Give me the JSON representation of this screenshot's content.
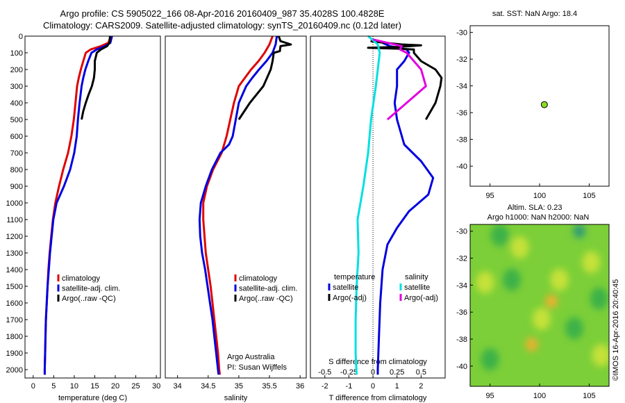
{
  "header": {
    "line1": "Argo profile: CS 5905022_166 08-Apr-2016 20160409_987 35.4028S 100.4828E",
    "line2": "Climatology: CARS2009. Satellite-adjusted climatology: synTS_20160409.nc (0.12d later)"
  },
  "side_label": "©IMOS 16-Apr-2016 20:40:45",
  "colors": {
    "climatology": "#e00000",
    "satellite": "#0000e0",
    "argo": "#000000",
    "sat_salinity": "#00e0e0",
    "argo_salinity_adj": "#e000e0",
    "marker": "#88dd22"
  },
  "chart_data": [
    {
      "type": "line",
      "id": "temperature",
      "xlabel": "temperature (deg C)",
      "ylabel": "",
      "xlim": [
        -2,
        31
      ],
      "ylim": [
        2050,
        0
      ],
      "xticks": [
        0,
        5,
        10,
        15,
        20,
        25,
        30
      ],
      "yticks": [
        0,
        100,
        200,
        300,
        400,
        500,
        600,
        700,
        800,
        900,
        1000,
        1100,
        1200,
        1300,
        1400,
        1500,
        1600,
        1700,
        1800,
        1900,
        2000
      ],
      "legend": [
        "climatology",
        "satellite-adj. clim.",
        "Argo(..raw -QC)"
      ],
      "series": [
        {
          "name": "climatology",
          "color": "#e00000",
          "points": [
            [
              18.9,
              0
            ],
            [
              18.6,
              20
            ],
            [
              18.3,
              40
            ],
            [
              16.5,
              60
            ],
            [
              14.0,
              80
            ],
            [
              12.8,
              100
            ],
            [
              12.2,
              150
            ],
            [
              11.6,
              200
            ],
            [
              11.1,
              250
            ],
            [
              10.7,
              300
            ],
            [
              10.3,
              400
            ],
            [
              9.9,
              500
            ],
            [
              9.3,
              600
            ],
            [
              8.5,
              700
            ],
            [
              7.3,
              800
            ],
            [
              6.3,
              900
            ],
            [
              5.4,
              1000
            ],
            [
              4.8,
              1100
            ],
            [
              4.4,
              1200
            ],
            [
              4.0,
              1300
            ],
            [
              3.7,
              1400
            ],
            [
              3.5,
              1500
            ],
            [
              3.3,
              1600
            ],
            [
              3.1,
              1700
            ],
            [
              3.0,
              1800
            ],
            [
              2.9,
              1900
            ],
            [
              2.8,
              2000
            ],
            [
              2.8,
              2030
            ]
          ]
        },
        {
          "name": "satellite-adj. clim.",
          "color": "#0000e0",
          "points": [
            [
              19.2,
              0
            ],
            [
              19.0,
              20
            ],
            [
              18.8,
              40
            ],
            [
              17.5,
              60
            ],
            [
              15.5,
              80
            ],
            [
              14.2,
              100
            ],
            [
              13.4,
              150
            ],
            [
              12.7,
              200
            ],
            [
              12.2,
              250
            ],
            [
              11.8,
              300
            ],
            [
              11.3,
              400
            ],
            [
              10.9,
              500
            ],
            [
              10.6,
              600
            ],
            [
              10.0,
              700
            ],
            [
              9.0,
              800
            ],
            [
              7.5,
              900
            ],
            [
              5.7,
              1000
            ],
            [
              4.9,
              1100
            ],
            [
              4.5,
              1200
            ],
            [
              4.1,
              1300
            ],
            [
              3.8,
              1400
            ],
            [
              3.5,
              1500
            ],
            [
              3.3,
              1600
            ],
            [
              3.1,
              1700
            ],
            [
              3.0,
              1800
            ],
            [
              2.9,
              1900
            ],
            [
              2.8,
              2000
            ],
            [
              2.8,
              2030
            ]
          ]
        },
        {
          "name": "Argo(..raw -QC)",
          "color": "#000000",
          "points": [
            [
              18.7,
              0
            ],
            [
              18.7,
              20
            ],
            [
              18.6,
              40
            ],
            [
              18.0,
              60
            ],
            [
              16.5,
              80
            ],
            [
              15.5,
              100
            ],
            [
              15.0,
              150
            ],
            [
              15.0,
              200
            ],
            [
              14.8,
              250
            ],
            [
              14.3,
              300
            ],
            [
              13.5,
              350
            ],
            [
              12.8,
              400
            ],
            [
              12.2,
              450
            ],
            [
              11.8,
              500
            ]
          ]
        }
      ]
    },
    {
      "type": "line",
      "id": "salinity",
      "xlabel": "salinity",
      "xlim": [
        33.8,
        36.1
      ],
      "ylim": [
        2050,
        0
      ],
      "xticks": [
        34,
        34.5,
        35,
        35.5,
        36
      ],
      "legend": [
        "climatology",
        "satellite-adj. clim.",
        "Argo(..raw -QC)"
      ],
      "annotation": [
        "Argo Australia",
        "PI: Susan Wijffels"
      ],
      "series": [
        {
          "name": "climatology",
          "color": "#e00000",
          "points": [
            [
              35.55,
              0
            ],
            [
              35.5,
              50
            ],
            [
              35.42,
              100
            ],
            [
              35.32,
              150
            ],
            [
              35.2,
              200
            ],
            [
              35.1,
              250
            ],
            [
              35.0,
              300
            ],
            [
              34.92,
              400
            ],
            [
              34.86,
              500
            ],
            [
              34.8,
              600
            ],
            [
              34.72,
              700
            ],
            [
              34.58,
              800
            ],
            [
              34.48,
              900
            ],
            [
              34.42,
              1000
            ],
            [
              34.42,
              1100
            ],
            [
              34.44,
              1200
            ],
            [
              34.46,
              1300
            ],
            [
              34.5,
              1400
            ],
            [
              34.54,
              1500
            ],
            [
              34.57,
              1600
            ],
            [
              34.6,
              1700
            ],
            [
              34.63,
              1800
            ],
            [
              34.66,
              1900
            ],
            [
              34.68,
              2000
            ],
            [
              34.69,
              2030
            ]
          ]
        },
        {
          "name": "satellite-adj. clim.",
          "color": "#0000e0",
          "points": [
            [
              35.62,
              0
            ],
            [
              35.6,
              50
            ],
            [
              35.55,
              100
            ],
            [
              35.45,
              150
            ],
            [
              35.33,
              200
            ],
            [
              35.22,
              250
            ],
            [
              35.12,
              300
            ],
            [
              35.0,
              400
            ],
            [
              34.95,
              500
            ],
            [
              34.9,
              600
            ],
            [
              34.84,
              650
            ],
            [
              34.7,
              700
            ],
            [
              34.56,
              800
            ],
            [
              34.46,
              900
            ],
            [
              34.38,
              1000
            ],
            [
              34.36,
              1100
            ],
            [
              34.37,
              1200
            ],
            [
              34.4,
              1300
            ],
            [
              34.45,
              1400
            ],
            [
              34.49,
              1500
            ],
            [
              34.53,
              1600
            ],
            [
              34.57,
              1700
            ],
            [
              34.6,
              1800
            ],
            [
              34.63,
              1900
            ],
            [
              34.66,
              2000
            ],
            [
              34.67,
              2030
            ]
          ]
        },
        {
          "name": "Argo(..raw -QC)",
          "color": "#000000",
          "points": [
            [
              35.65,
              0
            ],
            [
              35.68,
              30
            ],
            [
              35.85,
              50
            ],
            [
              35.68,
              60
            ],
            [
              35.67,
              90
            ],
            [
              35.57,
              100
            ],
            [
              35.55,
              150
            ],
            [
              35.52,
              200
            ],
            [
              35.4,
              300
            ],
            [
              35.18,
              400
            ],
            [
              35.0,
              500
            ]
          ]
        }
      ]
    },
    {
      "type": "line",
      "id": "difference",
      "xlabel": "T difference from climatology",
      "xlabel_top": "S difference from climatology",
      "xlim": [
        -2.6,
        3.0
      ],
      "ylim": [
        2050,
        0
      ],
      "xticks": [
        -2,
        -1,
        0,
        1,
        2
      ],
      "top_ticks": [
        -0.5,
        -0.25,
        0,
        0.25,
        0.5
      ],
      "top_tick_labels": [
        "-0.5",
        "-0.25",
        "0",
        "0.25",
        "0.5"
      ],
      "legend_title_left": "temperature",
      "legend_title_right": "salinity",
      "legend_left": [
        "satellite",
        "Argo(-adj)"
      ],
      "legend_right": [
        "satellite",
        "Argo(-adj)"
      ],
      "series": [
        {
          "name": "T satellite",
          "color": "#0000e0",
          "points": [
            [
              0.4,
              40
            ],
            [
              0.7,
              60
            ],
            [
              1.4,
              80
            ],
            [
              1.5,
              100
            ],
            [
              1.3,
              150
            ],
            [
              1.0,
              200
            ],
            [
              1.0,
              300
            ],
            [
              0.9,
              400
            ],
            [
              1.0,
              500
            ],
            [
              1.3,
              650
            ],
            [
              2.0,
              750
            ],
            [
              2.5,
              850
            ],
            [
              2.3,
              950
            ],
            [
              1.5,
              1050
            ],
            [
              1.0,
              1150
            ],
            [
              0.6,
              1250
            ],
            [
              0.4,
              1400
            ],
            [
              0.3,
              1600
            ],
            [
              0.25,
              1800
            ],
            [
              0.2,
              2000
            ],
            [
              0.2,
              2030
            ]
          ]
        },
        {
          "name": "T Argo(-adj)",
          "color": "#000000",
          "points": [
            [
              -0.1,
              30
            ],
            [
              0.5,
              40
            ],
            [
              1.2,
              50
            ],
            [
              2.0,
              55
            ],
            [
              1.0,
              65
            ],
            [
              -0.2,
              70
            ],
            [
              1.0,
              75
            ],
            [
              1.7,
              80
            ],
            [
              1.7,
              100
            ],
            [
              2.0,
              150
            ],
            [
              2.6,
              200
            ],
            [
              2.85,
              250
            ],
            [
              2.8,
              300
            ],
            [
              2.6,
              400
            ],
            [
              2.2,
              500
            ]
          ]
        },
        {
          "name": "S satellite",
          "color": "#00e0e0",
          "points": [
            [
              -0.05,
              0
            ],
            [
              0.05,
              50
            ],
            [
              0.07,
              100
            ],
            [
              0.05,
              200
            ],
            [
              0.03,
              300
            ],
            [
              -0.02,
              500
            ],
            [
              -0.05,
              700
            ],
            [
              -0.1,
              900
            ],
            [
              -0.13,
              1000
            ],
            [
              -0.16,
              1100
            ],
            [
              -0.15,
              1300
            ],
            [
              -0.17,
              1500
            ],
            [
              -0.18,
              1700
            ],
            [
              -0.18,
              1900
            ],
            [
              -0.17,
              2030
            ]
          ]
        },
        {
          "name": "S Argo(-adj)",
          "color": "#e000e0",
          "points": [
            [
              0.0,
              20
            ],
            [
              0.15,
              40
            ],
            [
              0.3,
              60
            ],
            [
              0.28,
              80
            ],
            [
              0.35,
              100
            ],
            [
              0.5,
              200
            ],
            [
              0.55,
              300
            ],
            [
              0.35,
              400
            ],
            [
              0.15,
              500
            ]
          ]
        }
      ]
    },
    {
      "type": "scatter",
      "id": "sst_map",
      "title": "sat. SST: NaN Argo: 18.4",
      "xlim": [
        93,
        107
      ],
      "ylim": [
        -41.5,
        -29.5
      ],
      "xticks": [
        95,
        100,
        105
      ],
      "yticks": [
        -30,
        -32,
        -34,
        -36,
        -38,
        -40
      ],
      "points": [
        [
          100.48,
          -35.4
        ]
      ]
    },
    {
      "type": "heatmap",
      "id": "sla_map",
      "title_line1": "Altim. SLA: 0.23",
      "title_line2": "Argo h1000: NaN h2000: NaN",
      "xlim": [
        93,
        107
      ],
      "ylim": [
        -41.5,
        -29.5
      ],
      "xticks": [
        95,
        100,
        105
      ],
      "yticks": [
        -30,
        -32,
        -34,
        -36,
        -38,
        -40
      ],
      "features": [
        {
          "lon": 94.5,
          "lat": -33.8,
          "level": "high"
        },
        {
          "lon": 96.0,
          "lat": -30.3,
          "level": "low"
        },
        {
          "lon": 97.2,
          "lat": -33.6,
          "level": "low"
        },
        {
          "lon": 99.2,
          "lat": -38.4,
          "level": "very-high"
        },
        {
          "lon": 101.2,
          "lat": -35.2,
          "level": "very-high"
        },
        {
          "lon": 100.2,
          "lat": -36.5,
          "level": "high"
        },
        {
          "lon": 102.0,
          "lat": -33.6,
          "level": "high"
        },
        {
          "lon": 103.5,
          "lat": -37.2,
          "level": "low"
        },
        {
          "lon": 104.0,
          "lat": -30.0,
          "level": "very-low"
        },
        {
          "lon": 105.2,
          "lat": -32.3,
          "level": "high"
        },
        {
          "lon": 106.0,
          "lat": -35.0,
          "level": "low"
        },
        {
          "lon": 106.2,
          "lat": -39.2,
          "level": "high"
        },
        {
          "lon": 95.0,
          "lat": -39.5,
          "level": "low"
        },
        {
          "lon": 98.0,
          "lat": -31.2,
          "level": "high"
        }
      ]
    }
  ]
}
